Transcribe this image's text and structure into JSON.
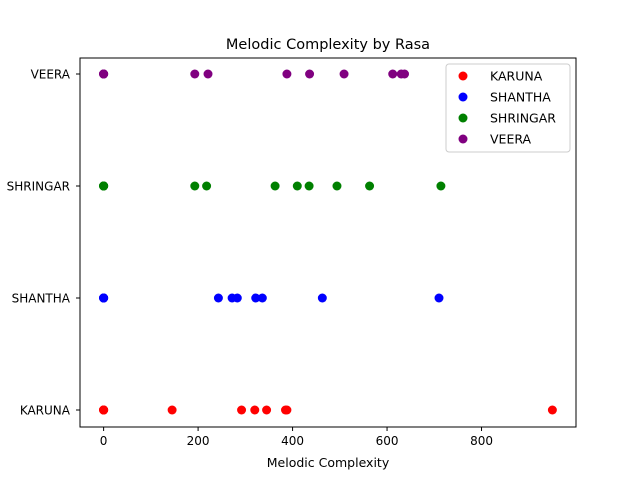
{
  "chart_data": {
    "type": "scatter",
    "title": "Melodic Complexity by Rasa",
    "xlabel": "Melodic Complexity",
    "ylabel": "",
    "xlim": [
      -50,
      1000
    ],
    "x_ticks": [
      0,
      200,
      400,
      600,
      800
    ],
    "categories": [
      "KARUNA",
      "SHANTHA",
      "SHRINGAR",
      "VEERA"
    ],
    "legend_position": "upper right",
    "grid": false,
    "series": [
      {
        "name": "KARUNA",
        "color": "#ff0000",
        "category": "KARUNA",
        "x": [
          0,
          0,
          0,
          0,
          0,
          0,
          145,
          292,
          320,
          345,
          385,
          388,
          950
        ]
      },
      {
        "name": "SHANTHA",
        "color": "#0000ff",
        "category": "SHANTHA",
        "x": [
          0,
          0,
          0,
          0,
          0,
          0,
          243,
          272,
          283,
          322,
          336,
          463,
          710
        ]
      },
      {
        "name": "SHRINGAR",
        "color": "#008000",
        "category": "SHRINGAR",
        "x": [
          0,
          0,
          0,
          0,
          0,
          0,
          193,
          218,
          363,
          410,
          435,
          494,
          563,
          714
        ]
      },
      {
        "name": "VEERA",
        "color": "#800080",
        "category": "VEERA",
        "x": [
          0,
          0,
          0,
          0,
          0,
          0,
          193,
          221,
          388,
          436,
          509,
          612,
          630,
          637
        ]
      }
    ]
  }
}
